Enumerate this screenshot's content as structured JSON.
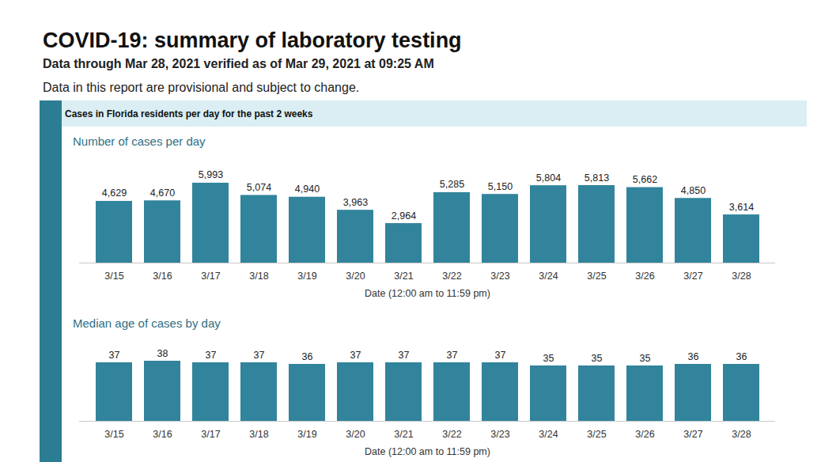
{
  "header": {
    "title": "COVID-19: summary of laboratory testing",
    "subtitle": "Data through Mar 28, 2021 verified as of Mar 29, 2021 at 09:25 AM",
    "note": "Data in this report are provisional and subject to change.",
    "section": "Cases in Florida residents per day for the past 2 weeks"
  },
  "chart_data": [
    {
      "type": "bar",
      "title": "Number of cases per day",
      "categories": [
        "3/15",
        "3/16",
        "3/17",
        "3/18",
        "3/19",
        "3/20",
        "3/21",
        "3/22",
        "3/23",
        "3/24",
        "3/25",
        "3/26",
        "3/27",
        "3/28"
      ],
      "values": [
        4629,
        4670,
        5993,
        5074,
        4940,
        3963,
        2964,
        5285,
        5150,
        5804,
        5813,
        5662,
        4850,
        3614
      ],
      "value_labels": [
        "4,629",
        "4,670",
        "5,993",
        "5,074",
        "4,940",
        "3,963",
        "2,964",
        "5,285",
        "5,150",
        "5,804",
        "5,813",
        "5,662",
        "4,850",
        "3,614"
      ],
      "color": "#31849b",
      "xlabel": "Date (12:00 am to 11:59 pm)",
      "ylim": [
        0,
        7000
      ],
      "data_labels": true,
      "tick_labels": "x"
    },
    {
      "type": "bar",
      "title": "Median age of cases by day",
      "categories": [
        "3/15",
        "3/16",
        "3/17",
        "3/18",
        "3/19",
        "3/20",
        "3/21",
        "3/22",
        "3/23",
        "3/24",
        "3/25",
        "3/26",
        "3/27",
        "3/28"
      ],
      "values": [
        37,
        38,
        37,
        37,
        36,
        37,
        37,
        37,
        37,
        35,
        35,
        35,
        36,
        36
      ],
      "color": "#31849b",
      "xlabel": "Date (12:00 am to 11:59 pm)",
      "ylim": [
        0,
        45
      ],
      "data_labels": true,
      "tick_labels": "x"
    }
  ]
}
